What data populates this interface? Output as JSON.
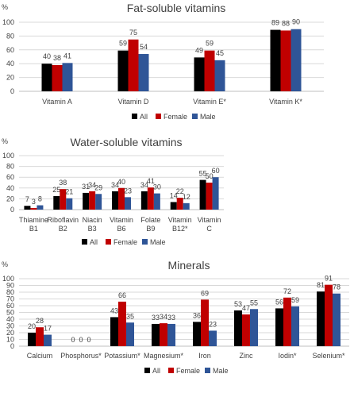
{
  "legend": {
    "items": [
      "All",
      "Female",
      "Male"
    ]
  },
  "colors": {
    "All": "#000000",
    "Female": "#c00000",
    "Male": "#2f5597",
    "grid": "#d9d9d9",
    "text": "#404040"
  },
  "chart_data": [
    {
      "type": "bar",
      "title": "Fat-soluble vitamins",
      "unit_label": "%",
      "ylim": [
        0,
        100
      ],
      "yticks": [
        0,
        20,
        40,
        60,
        80,
        100
      ],
      "grid": true,
      "legend_position": "bottom",
      "categories": [
        "Vitamin A",
        "Vitamin D",
        "Vitamin E*",
        "Vitamin K*"
      ],
      "series": [
        {
          "name": "All",
          "values": [
            40,
            59,
            49,
            89
          ]
        },
        {
          "name": "Female",
          "values": [
            38,
            75,
            59,
            88
          ]
        },
        {
          "name": "Male",
          "values": [
            41,
            54,
            45,
            90
          ]
        }
      ]
    },
    {
      "type": "bar",
      "title": "Water-soluble vitamins",
      "unit_label": "%",
      "ylim": [
        0,
        100
      ],
      "yticks": [
        0,
        20,
        40,
        60,
        80,
        100
      ],
      "grid": true,
      "legend_position": "bottom",
      "categories": [
        "Thiamine B1",
        "Riboflavin B2",
        "Niacin B3",
        "Vitamin B6",
        "Folate B9",
        "Vitamin B12*",
        "Vitamin C"
      ],
      "series": [
        {
          "name": "All",
          "values": [
            7,
            25,
            31,
            34,
            34,
            14,
            55
          ]
        },
        {
          "name": "Female",
          "values": [
            3,
            38,
            34,
            40,
            41,
            22,
            50
          ]
        },
        {
          "name": "Male",
          "values": [
            8,
            21,
            29,
            23,
            30,
            12,
            60
          ]
        }
      ]
    },
    {
      "type": "bar",
      "title": "Minerals",
      "unit_label": "%",
      "ylim": [
        0,
        100
      ],
      "yticks": [
        0,
        10,
        20,
        30,
        40,
        50,
        60,
        70,
        80,
        90,
        100
      ],
      "grid": true,
      "legend_position": "bottom",
      "categories": [
        "Calcium",
        "Phosphorus*",
        "Potassium*",
        "Magnesium*",
        "Iron",
        "Zinc",
        "Iodin*",
        "Selenium*"
      ],
      "series": [
        {
          "name": "All",
          "values": [
            20,
            0,
            43,
            33,
            36,
            53,
            56,
            81
          ]
        },
        {
          "name": "Female",
          "values": [
            28,
            0,
            66,
            34,
            69,
            47,
            72,
            91
          ]
        },
        {
          "name": "Male",
          "values": [
            17,
            0,
            35,
            33,
            23,
            55,
            59,
            78
          ]
        }
      ]
    }
  ]
}
